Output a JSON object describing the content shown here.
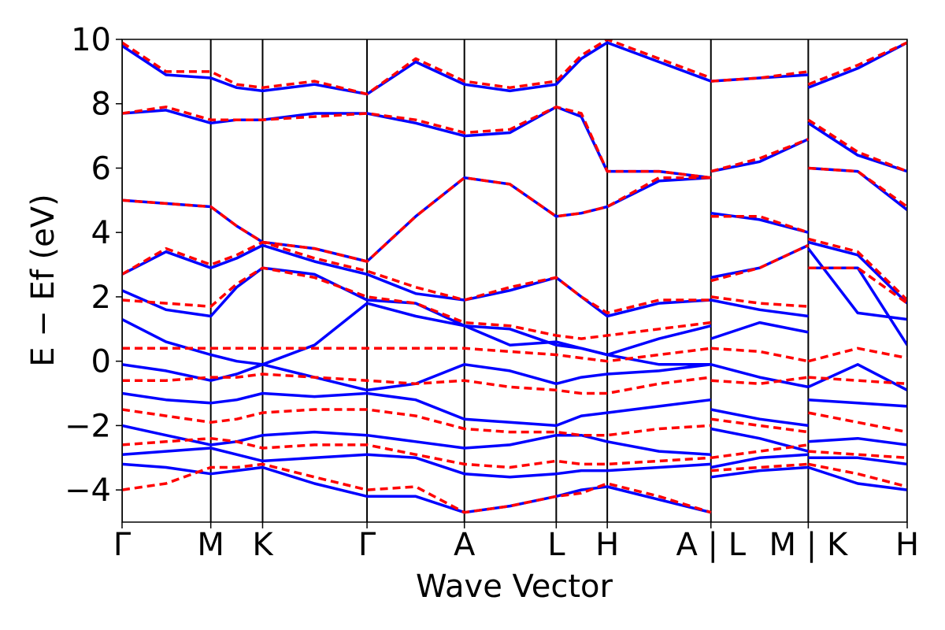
{
  "chart_data": {
    "type": "line",
    "xlabel": "Wave Vector",
    "ylabel": "E − Ef (eV)",
    "x": [
      0,
      0.056,
      0.113,
      0.146,
      0.179,
      0.245,
      0.312,
      0.374,
      0.436,
      0.494,
      0.553,
      0.585,
      0.618,
      0.684,
      0.75,
      0.75,
      0.75,
      0.812,
      0.874,
      0.874,
      0.874,
      0.937,
      1.0
    ],
    "xlim": [
      0,
      1.0
    ],
    "xticks": [
      {
        "value": 0,
        "label": "Γ"
      },
      {
        "value": 0.113,
        "label": "M"
      },
      {
        "value": 0.179,
        "label": "K"
      },
      {
        "value": 0.312,
        "label": "Γ"
      },
      {
        "value": 0.436,
        "label": "A"
      },
      {
        "value": 0.553,
        "label": "L"
      },
      {
        "value": 0.618,
        "label": "H"
      },
      {
        "value": 0.75,
        "label": "A | L"
      },
      {
        "value": 0.874,
        "label": "M | K"
      },
      {
        "value": 1.0,
        "label": "H"
      }
    ],
    "ylim": [
      -5,
      10
    ],
    "yticks": [
      {
        "value": -4,
        "label": "−4"
      },
      {
        "value": -2,
        "label": "−2"
      },
      0,
      2,
      4,
      6,
      8,
      10
    ],
    "grid": "x",
    "series": [
      {
        "color": "#0000ff",
        "dashed": false,
        "values": [
          -3.2,
          -3.3,
          -3.5,
          -3.4,
          -3.3,
          -3.8,
          -4.2,
          -4.2,
          -4.7,
          -4.5,
          -4.2,
          -4.0,
          -3.9,
          -4.3,
          -4.7,
          null,
          -3.6,
          -3.4,
          -3.3,
          null,
          -3.3,
          -3.8,
          -4.0
        ]
      },
      {
        "color": "#0000ff",
        "dashed": false,
        "values": [
          -2.9,
          -2.8,
          -2.7,
          -2.9,
          -3.1,
          -3.0,
          -2.9,
          -3.0,
          -3.5,
          -3.6,
          -3.5,
          -3.4,
          -3.4,
          -3.3,
          -3.2,
          null,
          -3.3,
          -3.0,
          -2.9,
          null,
          -3.0,
          -3.0,
          -3.2
        ]
      },
      {
        "color": "#0000ff",
        "dashed": false,
        "values": [
          -2.0,
          -2.3,
          -2.6,
          -2.5,
          -2.3,
          -2.2,
          -2.3,
          -2.5,
          -2.7,
          -2.6,
          -2.3,
          -2.3,
          -2.5,
          -2.8,
          -2.9,
          null,
          -2.1,
          -2.4,
          -2.8,
          null,
          -2.5,
          -2.4,
          -2.6
        ]
      },
      {
        "color": "#0000ff",
        "dashed": false,
        "values": [
          -1.0,
          -1.2,
          -1.3,
          -1.2,
          -1.0,
          -1.1,
          -1.0,
          -1.2,
          -1.8,
          -1.9,
          -2.0,
          -1.7,
          -1.6,
          -1.4,
          -1.2,
          null,
          -1.5,
          -1.8,
          -2.0,
          null,
          -1.2,
          -1.3,
          -1.4
        ]
      },
      {
        "color": "#0000ff",
        "dashed": false,
        "values": [
          -0.1,
          -0.3,
          -0.6,
          -0.4,
          -0.1,
          -0.5,
          -0.9,
          -0.7,
          -0.1,
          -0.3,
          -0.7,
          -0.5,
          -0.4,
          -0.3,
          -0.1,
          null,
          -0.1,
          -0.5,
          -0.8,
          null,
          -0.8,
          -0.1,
          -0.9
        ]
      },
      {
        "color": "#0000ff",
        "dashed": false,
        "values": [
          1.3,
          0.6,
          0.2,
          0.0,
          -0.1,
          0.5,
          1.8,
          1.4,
          1.1,
          1.0,
          0.5,
          0.4,
          0.2,
          -0.1,
          -0.1,
          null,
          0.7,
          1.2,
          0.9,
          null,
          2.9,
          2.9,
          0.5
        ]
      },
      {
        "color": "#0000ff",
        "dashed": false,
        "values": [
          2.2,
          1.6,
          1.4,
          2.3,
          2.9,
          2.7,
          1.9,
          1.8,
          1.1,
          0.5,
          0.6,
          0.4,
          0.2,
          0.7,
          1.1,
          null,
          1.9,
          1.6,
          1.4,
          null,
          3.5,
          1.5,
          1.3
        ]
      },
      {
        "color": "#0000ff",
        "dashed": false,
        "values": [
          2.7,
          3.4,
          2.9,
          3.2,
          3.6,
          3.1,
          2.7,
          2.1,
          1.9,
          2.2,
          2.6,
          2.0,
          1.4,
          1.8,
          1.9,
          null,
          2.6,
          2.9,
          3.6,
          null,
          3.7,
          3.3,
          1.8
        ]
      },
      {
        "color": "#0000ff",
        "dashed": false,
        "values": [
          5.0,
          4.9,
          4.8,
          4.2,
          3.7,
          3.5,
          3.1,
          4.5,
          5.7,
          5.5,
          4.5,
          4.6,
          4.8,
          5.6,
          5.7,
          null,
          4.6,
          4.4,
          4.0,
          null,
          6.0,
          5.9,
          4.7
        ]
      },
      {
        "color": "#0000ff",
        "dashed": false,
        "values": [
          7.7,
          7.8,
          7.4,
          7.5,
          7.5,
          7.7,
          7.7,
          7.4,
          7.0,
          7.1,
          7.9,
          7.6,
          5.9,
          5.9,
          5.7,
          null,
          5.9,
          6.2,
          6.9,
          null,
          7.4,
          6.4,
          5.9
        ]
      },
      {
        "color": "#0000ff",
        "dashed": false,
        "values": [
          9.8,
          8.9,
          8.8,
          8.5,
          8.4,
          8.6,
          8.3,
          9.3,
          8.6,
          8.4,
          8.6,
          9.4,
          9.9,
          9.3,
          8.7,
          null,
          8.7,
          8.8,
          8.9,
          null,
          8.5,
          9.1,
          9.9
        ]
      },
      {
        "color": "#ff0000",
        "dashed": true,
        "values": [
          -4.0,
          -3.8,
          -3.3,
          -3.3,
          -3.2,
          -3.6,
          -4.0,
          -3.9,
          -4.7,
          -4.5,
          -4.2,
          -4.1,
          -3.8,
          -4.2,
          -4.7,
          null,
          -3.4,
          -3.3,
          -3.2,
          null,
          -3.2,
          -3.5,
          -3.9
        ]
      },
      {
        "color": "#ff0000",
        "dashed": true,
        "values": [
          -2.6,
          -2.5,
          -2.4,
          -2.5,
          -2.7,
          -2.6,
          -2.6,
          -2.9,
          -3.2,
          -3.3,
          -3.1,
          -3.2,
          -3.2,
          -3.1,
          -3.0,
          null,
          -3.0,
          -2.8,
          -2.6,
          null,
          -2.8,
          -2.9,
          -3.0
        ]
      },
      {
        "color": "#ff0000",
        "dashed": true,
        "values": [
          -1.5,
          -1.7,
          -1.9,
          -1.8,
          -1.6,
          -1.5,
          -1.5,
          -1.7,
          -2.1,
          -2.2,
          -2.2,
          -2.3,
          -2.3,
          -2.1,
          -2.0,
          null,
          -1.8,
          -2.0,
          -2.2,
          null,
          -1.6,
          -1.9,
          -2.2
        ]
      },
      {
        "color": "#ff0000",
        "dashed": true,
        "values": [
          -0.6,
          -0.6,
          -0.5,
          -0.5,
          -0.4,
          -0.5,
          -0.6,
          -0.7,
          -0.6,
          -0.8,
          -0.9,
          -1.0,
          -1.0,
          -0.7,
          -0.5,
          null,
          -0.6,
          -0.7,
          -0.5,
          null,
          -0.5,
          -0.6,
          -0.7
        ]
      },
      {
        "color": "#ff0000",
        "dashed": true,
        "values": [
          0.4,
          0.4,
          0.4,
          0.4,
          0.4,
          0.4,
          0.4,
          0.4,
          0.4,
          0.3,
          0.2,
          0.1,
          0.0,
          0.2,
          0.4,
          null,
          0.4,
          0.3,
          0.0,
          null,
          0.0,
          0.4,
          0.1
        ]
      },
      {
        "color": "#ff0000",
        "dashed": true,
        "values": [
          1.9,
          1.8,
          1.7,
          2.4,
          2.9,
          2.6,
          2.0,
          1.8,
          1.2,
          1.1,
          0.8,
          0.7,
          0.8,
          1.0,
          1.2,
          null,
          2.0,
          1.8,
          1.7,
          null,
          2.9,
          2.9,
          1.8
        ]
      },
      {
        "color": "#ff0000",
        "dashed": true,
        "values": [
          2.7,
          3.5,
          3.0,
          3.3,
          3.7,
          3.2,
          2.8,
          2.3,
          1.9,
          2.3,
          2.6,
          2.0,
          1.5,
          1.9,
          1.9,
          null,
          2.5,
          2.9,
          3.6,
          null,
          3.8,
          3.4,
          1.9
        ]
      },
      {
        "color": "#ff0000",
        "dashed": true,
        "values": [
          5.0,
          4.9,
          4.8,
          4.2,
          3.7,
          3.5,
          3.1,
          4.5,
          5.7,
          5.5,
          4.5,
          4.6,
          4.8,
          5.7,
          5.7,
          null,
          4.5,
          4.5,
          4.0,
          null,
          6.0,
          5.9,
          4.8
        ]
      },
      {
        "color": "#ff0000",
        "dashed": true,
        "values": [
          7.7,
          7.9,
          7.5,
          7.5,
          7.5,
          7.6,
          7.7,
          7.5,
          7.1,
          7.2,
          7.9,
          7.7,
          5.9,
          5.9,
          5.7,
          null,
          5.9,
          6.3,
          6.9,
          null,
          7.5,
          6.5,
          5.9
        ]
      },
      {
        "color": "#ff0000",
        "dashed": true,
        "values": [
          9.9,
          9.0,
          9.0,
          8.6,
          8.5,
          8.7,
          8.3,
          9.4,
          8.7,
          8.5,
          8.7,
          9.5,
          10,
          9.4,
          8.8,
          null,
          8.7,
          8.8,
          9.0,
          null,
          8.6,
          9.2,
          9.9
        ]
      }
    ]
  }
}
